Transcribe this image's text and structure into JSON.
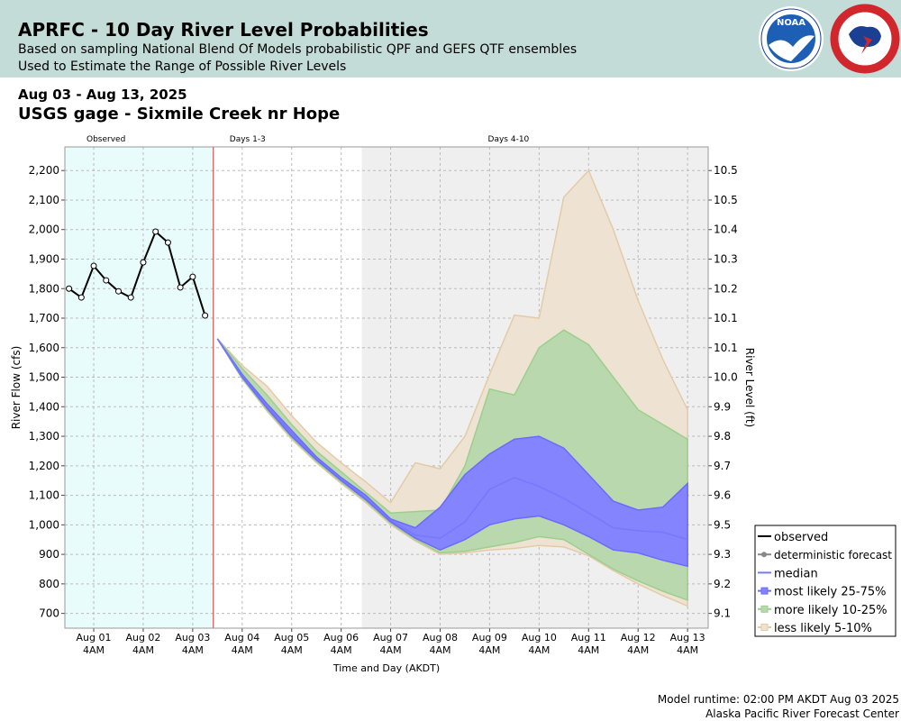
{
  "header": {
    "title": "APRFC - 10 Day River Level Probabilities",
    "subtitle_lines": [
      "Based on sampling National Blend Of Models probabilistic QPF and GEFS QTF ensembles",
      "Used to Estimate the Range of Possible River Levels"
    ],
    "noaa_logo_text": "NOAA"
  },
  "date_range": "Aug 03 - Aug 13, 2025",
  "location": "USGS gage - Sixmile Creek nr Hope",
  "chart_data": {
    "type": "band",
    "xlabel": "Time and Day (AKDT)",
    "ylabel": "River Flow (cfs)",
    "y2label": "River Level (ft)",
    "xlim": [
      "2025-07-31T14:00",
      "2025-08-13T14:00"
    ],
    "xticks": [
      {
        "value": "2025-08-01T04:00",
        "label": "Aug 01\n4AM"
      },
      {
        "value": "2025-08-02T04:00",
        "label": "Aug 02\n4AM"
      },
      {
        "value": "2025-08-03T04:00",
        "label": "Aug 03\n4AM"
      },
      {
        "value": "2025-08-04T04:00",
        "label": "Aug 04\n4AM"
      },
      {
        "value": "2025-08-05T04:00",
        "label": "Aug 05\n4AM"
      },
      {
        "value": "2025-08-06T04:00",
        "label": "Aug 06\n4AM"
      },
      {
        "value": "2025-08-07T04:00",
        "label": "Aug 07\n4AM"
      },
      {
        "value": "2025-08-08T04:00",
        "label": "Aug 08\n4AM"
      },
      {
        "value": "2025-08-09T04:00",
        "label": "Aug 09\n4AM"
      },
      {
        "value": "2025-08-10T04:00",
        "label": "Aug 10\n4AM"
      },
      {
        "value": "2025-08-11T04:00",
        "label": "Aug 11\n4AM"
      },
      {
        "value": "2025-08-12T04:00",
        "label": "Aug 12\n4AM"
      },
      {
        "value": "2025-08-13T04:00",
        "label": "Aug 13\n4AM"
      }
    ],
    "ylim": [
      650,
      2280
    ],
    "yticks": [
      700,
      800,
      900,
      {
        "value": 1000,
        "label": "1,000"
      },
      {
        "value": 1100,
        "label": "1,100"
      },
      {
        "value": 1200,
        "label": "1,200"
      },
      {
        "value": 1300,
        "label": "1,300"
      },
      {
        "value": 1400,
        "label": "1,400"
      },
      {
        "value": 1500,
        "label": "1,500"
      },
      {
        "value": 1600,
        "label": "1,600"
      },
      {
        "value": 1700,
        "label": "1,700"
      },
      {
        "value": 1800,
        "label": "1,800"
      },
      {
        "value": 1900,
        "label": "1,900"
      },
      {
        "value": 2000,
        "label": "2,000"
      },
      {
        "value": 2100,
        "label": "2,100"
      },
      {
        "value": 2200,
        "label": "2,200"
      }
    ],
    "y2tick_labels": [
      "9.1",
      "9.2",
      "9.3",
      "9.5",
      "9.6",
      "9.7",
      "9.8",
      "9.9",
      "10.0",
      "10.1",
      "10.1",
      "10.2",
      "10.3",
      "10.4",
      "10.5",
      "10.5"
    ],
    "grid": true,
    "regions": [
      {
        "label": "Observed",
        "start": "2025-07-31T14:00",
        "end": "2025-08-03T14:00",
        "color": "#e8fcfc"
      },
      {
        "label": "Days 1-3",
        "start": "2025-08-03T14:00",
        "end": "2025-08-06T14:00",
        "color": "#ffffff"
      },
      {
        "label": "Days 4-10",
        "start": "2025-08-06T14:00",
        "end": "2025-08-13T14:00",
        "color": "#efefef"
      }
    ],
    "forecast_start_color": "#cc3333",
    "forecast_x": [
      "2025-08-03T16:00",
      "2025-08-04T04:00",
      "2025-08-04T16:00",
      "2025-08-05T04:00",
      "2025-08-05T16:00",
      "2025-08-06T04:00",
      "2025-08-06T16:00",
      "2025-08-07T04:00",
      "2025-08-07T16:00",
      "2025-08-08T04:00",
      "2025-08-08T16:00",
      "2025-08-09T04:00",
      "2025-08-09T16:00",
      "2025-08-10T04:00",
      "2025-08-10T16:00",
      "2025-08-11T04:00",
      "2025-08-11T16:00",
      "2025-08-12T04:00",
      "2025-08-12T16:00",
      "2025-08-13T04:00"
    ],
    "series": [
      {
        "name": "observed",
        "color": "#000000",
        "markers": true,
        "x": [
          "2025-07-31T16:00",
          "2025-07-31T22:00",
          "2025-08-01T04:00",
          "2025-08-01T10:00",
          "2025-08-01T16:00",
          "2025-08-01T22:00",
          "2025-08-02T04:00",
          "2025-08-02T10:00",
          "2025-08-02T16:00",
          "2025-08-02T22:00",
          "2025-08-03T04:00",
          "2025-08-03T10:00"
        ],
        "values": [
          1800,
          1770,
          1877,
          1828,
          1791,
          1770,
          1889,
          1993,
          1956,
          1804,
          1840,
          1709
        ]
      },
      {
        "name": "deterministic forecast",
        "color": "#888888",
        "markers": true,
        "x": [],
        "values": []
      },
      {
        "name": "median",
        "color": "#7777ff",
        "markers": false,
        "values": [
          1630,
          1505,
          1400,
          1310,
          1225,
          1155,
          1090,
          1015,
          965,
          955,
          1010,
          1120,
          1160,
          1130,
          1090,
          1040,
          990,
          980,
          975,
          950
        ]
      }
    ],
    "bands": [
      {
        "name": "most likely 25-75%",
        "color": "#8484ff",
        "edge": "#6a6aff",
        "lower": [
          1630,
          1500,
          1395,
          1300,
          1220,
          1150,
          1085,
          1010,
          955,
          915,
          950,
          1000,
          1020,
          1030,
          1000,
          960,
          915,
          905,
          880,
          860
        ],
        "upper": [
          1630,
          1510,
          1410,
          1320,
          1230,
          1160,
          1100,
          1020,
          990,
          1060,
          1170,
          1240,
          1290,
          1300,
          1260,
          1170,
          1080,
          1050,
          1060,
          1140
        ]
      },
      {
        "name": "more likely 10-25%",
        "color": "#b9d8ae",
        "edge": "#9ccf8c",
        "lower": [
          1630,
          1495,
          1390,
          1295,
          1215,
          1145,
          1080,
          1005,
          950,
          905,
          910,
          925,
          940,
          960,
          950,
          900,
          850,
          810,
          775,
          745
        ],
        "upper": [
          1630,
          1530,
          1440,
          1340,
          1250,
          1180,
          1110,
          1040,
          1045,
          1050,
          1200,
          1460,
          1440,
          1600,
          1660,
          1610,
          1500,
          1390,
          1340,
          1290
        ]
      },
      {
        "name": "less likely 5-10%",
        "color": "#eee3d3",
        "edge": "#e3cba8",
        "lower": [
          1630,
          1495,
          1385,
          1290,
          1210,
          1140,
          1075,
          1000,
          945,
          900,
          905,
          915,
          920,
          930,
          925,
          895,
          845,
          800,
          760,
          725
        ],
        "upper": [
          1630,
          1540,
          1470,
          1370,
          1280,
          1210,
          1145,
          1075,
          1210,
          1190,
          1300,
          1510,
          1710,
          1700,
          2110,
          2200,
          2000,
          1760,
          1560,
          1390
        ]
      }
    ]
  },
  "footer": [
    "Model runtime: 02:00 PM AKDT Aug 03 2025",
    "Alaska Pacific River Forecast Center"
  ]
}
